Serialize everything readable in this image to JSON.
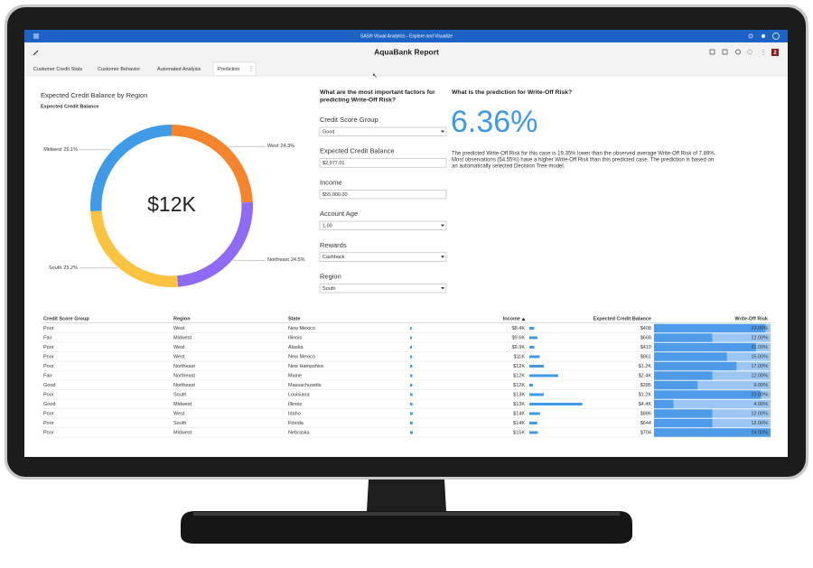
{
  "app": {
    "title": "SAS® Visual Analytics - Explore and Visualize",
    "notification_count": "2"
  },
  "report": {
    "title": "AquaBank Report"
  },
  "tabs": [
    "Customer Credit Stats",
    "Customer Behavior",
    "Automated Analysis",
    "Prediction"
  ],
  "chart_data": {
    "type": "donut",
    "title": "Expected Credit Balance by Region",
    "subtitle": "Expected Credit Balance",
    "center_label": "$12K",
    "categories": [
      "West",
      "Northeast",
      "South",
      "Midwest"
    ],
    "values": [
      24.3,
      24.5,
      25.2,
      26.1
    ],
    "value_labels": [
      "24.3%",
      "24.5%",
      "25.2%",
      "26.1%"
    ],
    "colors": [
      "#f5842c",
      "#8f6bf5",
      "#fbc33f",
      "#3f9ae8"
    ]
  },
  "factors": {
    "title": [
      "What are the most important factors for",
      "predicting Write-Off Risk?"
    ],
    "fields": [
      {
        "label": "Credit Score Group",
        "value": "Good",
        "dropdown": true
      },
      {
        "label": "Expected Credit Balance",
        "value": "$2,977.01",
        "dropdown": false
      },
      {
        "label": "Income",
        "value": "$55,000.00",
        "dropdown": false
      },
      {
        "label": "Account Age",
        "value": "1.00",
        "dropdown": true
      },
      {
        "label": "Rewards",
        "value": "Cashback",
        "dropdown": true
      },
      {
        "label": "Region",
        "value": "South",
        "dropdown": true
      }
    ]
  },
  "prediction": {
    "title": "What is the prediction for Write-Off Risk?",
    "value": "6.36%",
    "text": [
      "The predicted Write-Off Risk for this case is 19.35% lower than the observed average Write-Off Risk of 7.89%.",
      "Most observations (54.55%) have a higher Write-Off Risk than this predicted case. The prediction is based on",
      "an automatically selected Decision Tree model."
    ]
  },
  "table": {
    "header": [
      "Credit Score Group",
      "Region",
      "State",
      "Income",
      "Expected Credit Balance",
      "Write-Off Risk"
    ],
    "rows": [
      [
        "Poor",
        "West",
        "New Mexico",
        {
          "value": 8400,
          "label": "$8.4K"
        },
        {
          "value": 408,
          "label": "$408"
        },
        {
          "value": 23,
          "label": "23.00%"
        }
      ],
      [
        "Fair",
        "Midwest",
        "Illinois",
        {
          "value": 9600,
          "label": "$9.6K"
        },
        {
          "value": 668,
          "label": "$668"
        },
        {
          "value": 12,
          "label": "12.00%"
        }
      ],
      [
        "Poor",
        "West",
        "Alaska",
        {
          "value": 9900,
          "label": "$9.9K"
        },
        {
          "value": 419,
          "label": "$419"
        },
        {
          "value": 21,
          "label": "21.00%"
        }
      ],
      [
        "Poor",
        "West",
        "New Mexico",
        {
          "value": 11000,
          "label": "$11K"
        },
        {
          "value": 861,
          "label": "$861"
        },
        {
          "value": 15,
          "label": "15.00%"
        }
      ],
      [
        "Poor",
        "Northeast",
        "New Hampshire",
        {
          "value": 12000,
          "label": "$12K"
        },
        {
          "value": 1200,
          "label": "$1.2K"
        },
        {
          "value": 17,
          "label": "17.00%"
        }
      ],
      [
        "Fair",
        "Northeast",
        "Maine",
        {
          "value": 12000,
          "label": "$12K"
        },
        {
          "value": 2400,
          "label": "$2.4K"
        },
        {
          "value": 12,
          "label": "12.00%"
        }
      ],
      [
        "Good",
        "Northeast",
        "Massachusetts",
        {
          "value": 12000,
          "label": "$12K"
        },
        {
          "value": 285,
          "label": "$285"
        },
        {
          "value": 9,
          "label": "9.00%"
        }
      ],
      [
        "Poor",
        "South",
        "Louisiana",
        {
          "value": 13000,
          "label": "$13K"
        },
        {
          "value": 1200,
          "label": "$1.2K"
        },
        {
          "value": 22,
          "label": "22.00%"
        }
      ],
      [
        "Good",
        "Midwest",
        "Illinois",
        {
          "value": 13000,
          "label": "$13K"
        },
        {
          "value": 4400,
          "label": "$4.4K"
        },
        {
          "value": 4,
          "label": "4.00%"
        }
      ],
      [
        "Poor",
        "West",
        "Idaho",
        {
          "value": 14000,
          "label": "$14K"
        },
        {
          "value": 886,
          "label": "$886"
        },
        {
          "value": 12,
          "label": "12.00%"
        }
      ],
      [
        "Poor",
        "South",
        "Florida",
        {
          "value": 14000,
          "label": "$14K"
        },
        {
          "value": 644,
          "label": "$644"
        },
        {
          "value": 12,
          "label": "12.00%"
        }
      ],
      [
        "Poor",
        "Midwest",
        "Nebraska",
        {
          "value": 15000,
          "label": "$15K"
        },
        {
          "value": 704,
          "label": "$704"
        },
        {
          "value": 24,
          "label": "24.00%"
        }
      ]
    ]
  }
}
